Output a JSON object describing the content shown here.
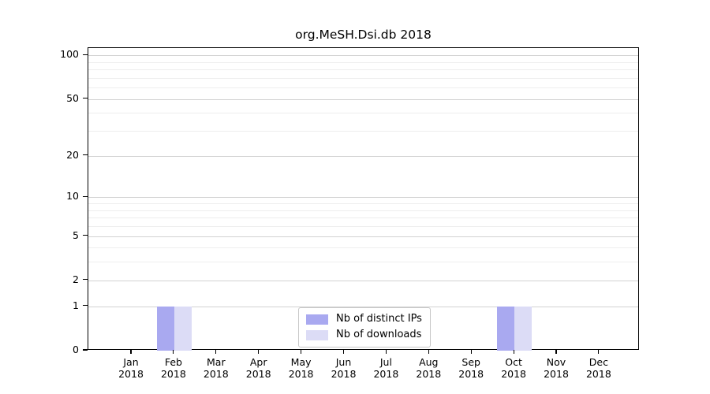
{
  "figure": {
    "background": "#ffffff"
  },
  "chart_data": {
    "type": "bar",
    "title": "org.MeSH.Dsi.db 2018",
    "xlabel": "",
    "ylabel": "",
    "months": [
      "Jan",
      "Feb",
      "Mar",
      "Apr",
      "May",
      "Jun",
      "Jul",
      "Aug",
      "Sep",
      "Oct",
      "Nov",
      "Dec"
    ],
    "year_label": "2018",
    "categories": [
      "Jan 2018",
      "Feb 2018",
      "Mar 2018",
      "Apr 2018",
      "May 2018",
      "Jun 2018",
      "Jul 2018",
      "Aug 2018",
      "Sep 2018",
      "Oct 2018",
      "Nov 2018",
      "Dec 2018"
    ],
    "series": [
      {
        "name": "Nb of distinct IPs",
        "color": "#a9a9f0",
        "values": [
          0,
          1,
          0,
          0,
          0,
          0,
          0,
          0,
          0,
          1,
          0,
          0
        ]
      },
      {
        "name": "Nb of downloads",
        "color": "#dcdcf6",
        "values": [
          0,
          1,
          0,
          0,
          0,
          0,
          0,
          0,
          0,
          1,
          0,
          0
        ]
      }
    ],
    "yscale": "log1p",
    "ylim": [
      0,
      112
    ],
    "yticks": [
      0,
      1,
      2,
      5,
      10,
      20,
      50,
      100
    ],
    "yticks_minor": [
      3,
      4,
      6,
      7,
      8,
      9,
      30,
      40,
      60,
      70,
      80,
      90
    ],
    "grid": true,
    "legend_position": "lower center"
  },
  "colors": {
    "major_grid": "#d2d2d2",
    "minor_grid": "#eeeeee",
    "spine": "#000000",
    "legend_border": "#c8c8c8",
    "text": "#000000"
  }
}
